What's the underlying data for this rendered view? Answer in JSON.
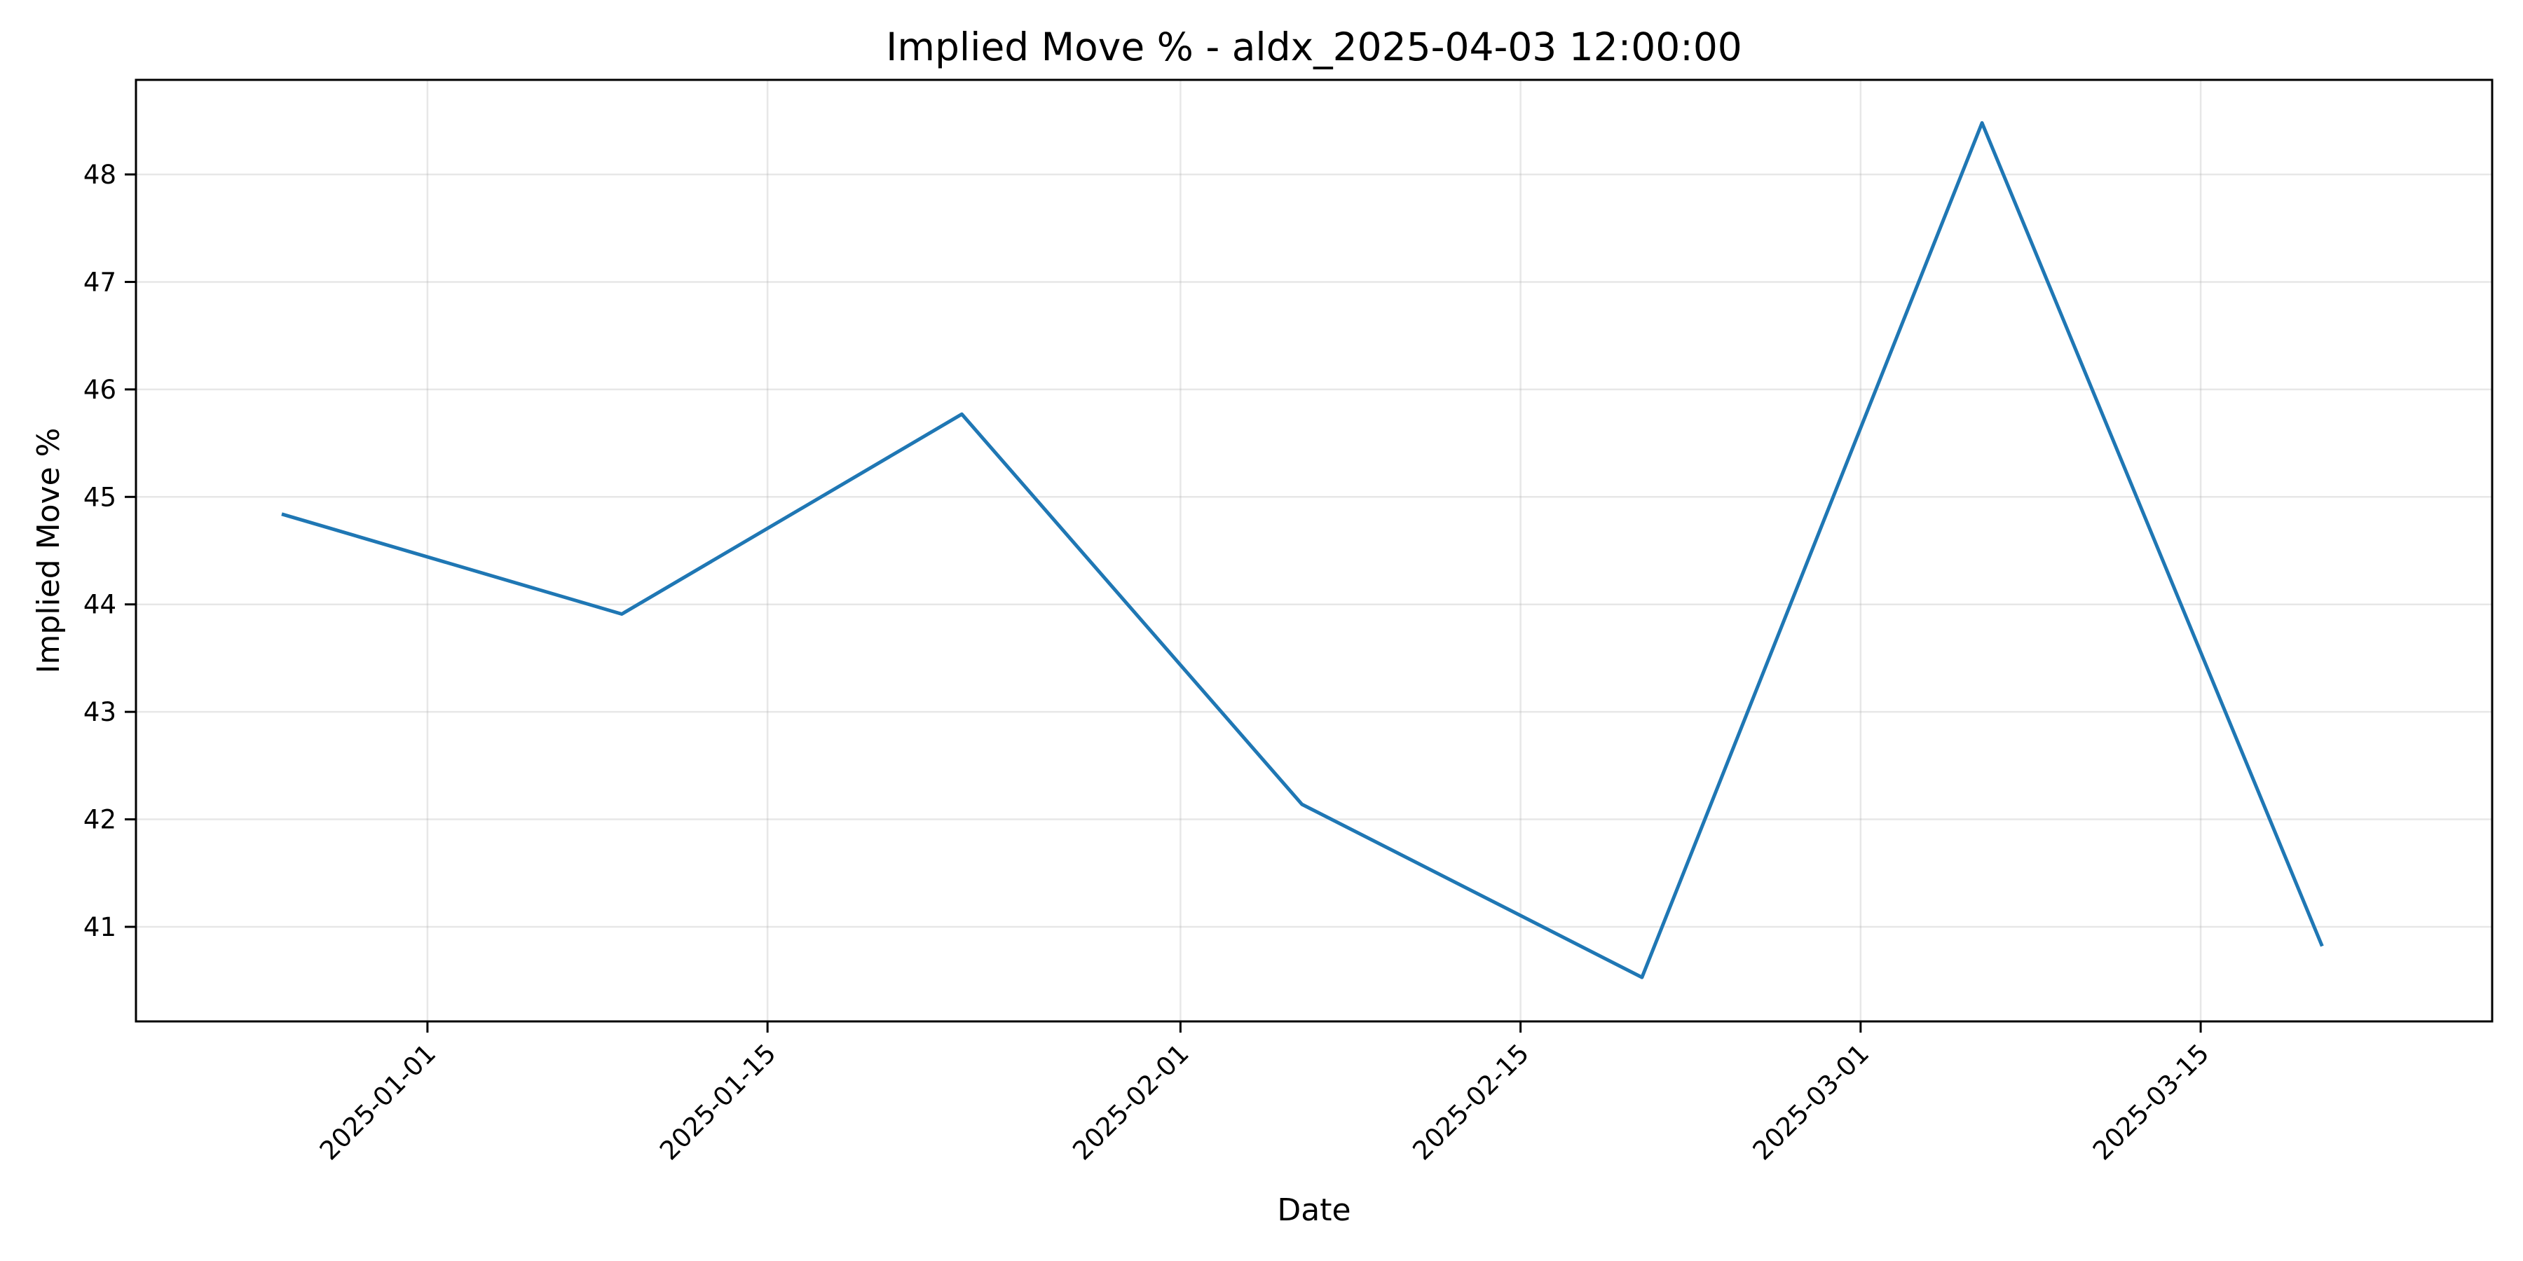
{
  "chart_data": {
    "type": "line",
    "title": "Implied Move % - aldx_2025-04-03 12:00:00",
    "xlabel": "Date",
    "ylabel": "Implied Move %",
    "x_type": "date",
    "xlim": [
      "2024-12-20",
      "2025-03-27"
    ],
    "ylim": [
      40.12,
      48.88
    ],
    "x_ticks": [
      "2025-01-01",
      "2025-01-15",
      "2025-02-01",
      "2025-02-15",
      "2025-03-01",
      "2025-03-15"
    ],
    "y_ticks": [
      41,
      42,
      43,
      44,
      45,
      46,
      47,
      48
    ],
    "grid": true,
    "legend": "none",
    "color": "#1f77b4",
    "series": [
      {
        "x": [
          "2024-12-26",
          "2025-01-09",
          "2025-01-23",
          "2025-02-06",
          "2025-02-20",
          "2025-03-06",
          "2025-03-20"
        ],
        "y": [
          44.84,
          43.91,
          45.77,
          42.14,
          40.53,
          48.48,
          40.82
        ]
      }
    ]
  }
}
